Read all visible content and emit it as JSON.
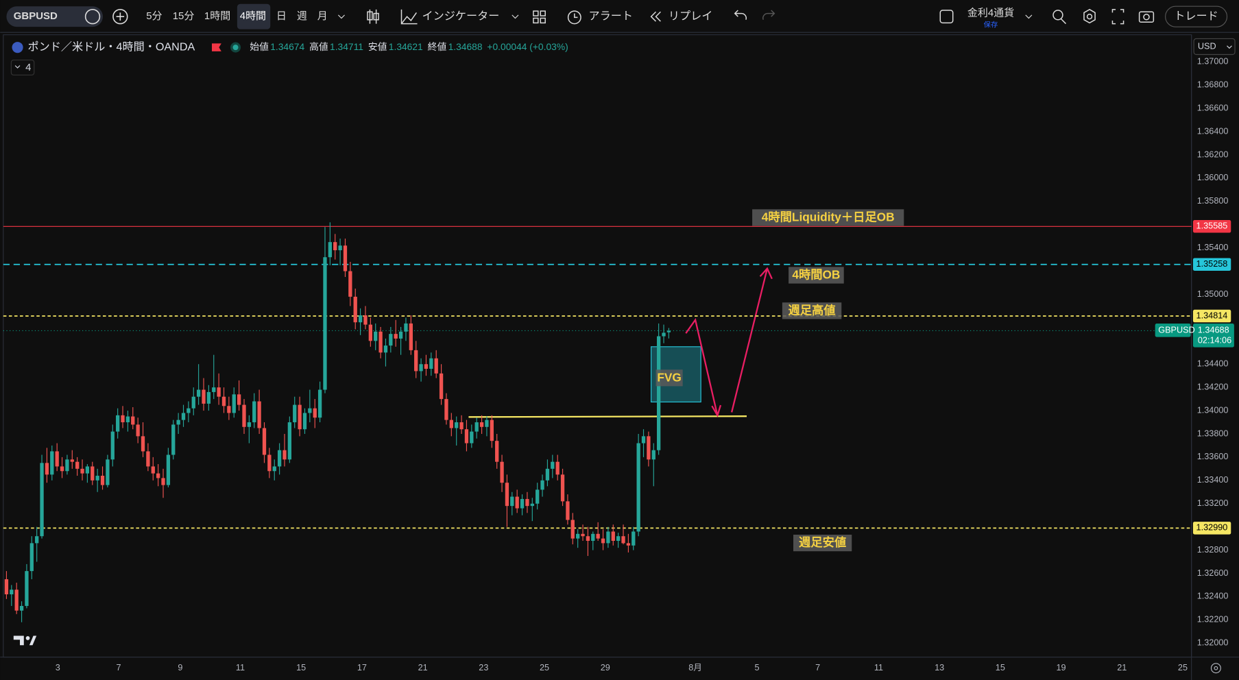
{
  "toolbar": {
    "symbol": "GBPUSD",
    "intervals": [
      "5分",
      "15分",
      "1時間",
      "4時間",
      "日",
      "週",
      "月"
    ],
    "active_interval": 3,
    "indicators": "インジケーター",
    "alert": "アラート",
    "replay": "リプレイ",
    "layout_name": "金利4通貨",
    "save": "保存",
    "trade": "トレード",
    "currency": "USD"
  },
  "legend": {
    "title": "ポンド／米ドル・4時間・OANDA",
    "items": [
      {
        "label": "始値",
        "value": "1.34674"
      },
      {
        "label": "高値",
        "value": "1.34711"
      },
      {
        "label": "安値",
        "value": "1.34621"
      },
      {
        "label": "終値",
        "value": "1.34688"
      }
    ],
    "change": "+0.00044 (+0.03%)",
    "collapse": "4"
  },
  "chart_data": {
    "type": "candlestick",
    "up_color": "#26a69a",
    "down_color": "#ef5350",
    "ylim": [
      1.3188,
      1.3722
    ],
    "yticks": [
      {
        "value": 1.37,
        "label": "1.37000"
      },
      {
        "value": 1.368,
        "label": "1.36800"
      },
      {
        "value": 1.366,
        "label": "1.36600"
      },
      {
        "value": 1.364,
        "label": "1.36400"
      },
      {
        "value": 1.362,
        "label": "1.36200"
      },
      {
        "value": 1.36,
        "label": "1.36000"
      },
      {
        "value": 1.358,
        "label": "1.35800"
      },
      {
        "value": 1.354,
        "label": "1.35400"
      },
      {
        "value": 1.35,
        "label": "1.35000"
      },
      {
        "value": 1.344,
        "label": "1.34400"
      },
      {
        "value": 1.342,
        "label": "1.34200"
      },
      {
        "value": 1.34,
        "label": "1.34000"
      },
      {
        "value": 1.338,
        "label": "1.33800"
      },
      {
        "value": 1.336,
        "label": "1.33600"
      },
      {
        "value": 1.334,
        "label": "1.33400"
      },
      {
        "value": 1.332,
        "label": "1.33200"
      },
      {
        "value": 1.328,
        "label": "1.32800"
      },
      {
        "value": 1.326,
        "label": "1.32600"
      },
      {
        "value": 1.324,
        "label": "1.32400"
      },
      {
        "value": 1.322,
        "label": "1.32200"
      },
      {
        "value": 1.32,
        "label": "1.32000"
      }
    ],
    "x_labels": [
      "3",
      "7",
      "9",
      "11",
      "15",
      "17",
      "21",
      "23",
      "25",
      "29",
      "8月",
      "5",
      "7",
      "11",
      "13",
      "15",
      "19",
      "21",
      "25"
    ],
    "candles": [
      [
        1.3255,
        1.3262,
        1.3238,
        1.3242
      ],
      [
        1.3242,
        1.325,
        1.3232,
        1.3246
      ],
      [
        1.3246,
        1.3252,
        1.3225,
        1.3228
      ],
      [
        1.3228,
        1.3236,
        1.3218,
        1.3232
      ],
      [
        1.3232,
        1.3268,
        1.323,
        1.3262
      ],
      [
        1.3262,
        1.3292,
        1.3255,
        1.3286
      ],
      [
        1.3286,
        1.33,
        1.327,
        1.3292
      ],
      [
        1.3292,
        1.3362,
        1.329,
        1.3355
      ],
      [
        1.3355,
        1.3368,
        1.3338,
        1.3345
      ],
      [
        1.3345,
        1.337,
        1.334,
        1.3365
      ],
      [
        1.3365,
        1.3372,
        1.3348,
        1.3352
      ],
      [
        1.3352,
        1.336,
        1.3342,
        1.3348
      ],
      [
        1.3348,
        1.3362,
        1.3345,
        1.3358
      ],
      [
        1.3358,
        1.3366,
        1.335,
        1.3356
      ],
      [
        1.3356,
        1.336,
        1.3344,
        1.335
      ],
      [
        1.335,
        1.3358,
        1.334,
        1.3346
      ],
      [
        1.3346,
        1.3354,
        1.3338,
        1.3352
      ],
      [
        1.3352,
        1.3356,
        1.3336,
        1.334
      ],
      [
        1.334,
        1.335,
        1.333,
        1.3344
      ],
      [
        1.3344,
        1.3352,
        1.3332,
        1.3336
      ],
      [
        1.3336,
        1.3362,
        1.3334,
        1.3358
      ],
      [
        1.3358,
        1.3388,
        1.3352,
        1.3382
      ],
      [
        1.3382,
        1.3402,
        1.3376,
        1.3396
      ],
      [
        1.3396,
        1.3404,
        1.3385,
        1.339
      ],
      [
        1.339,
        1.34,
        1.3382,
        1.3395
      ],
      [
        1.3395,
        1.3403,
        1.3384,
        1.3388
      ],
      [
        1.3388,
        1.3394,
        1.3372,
        1.3378
      ],
      [
        1.3378,
        1.339,
        1.336,
        1.3365
      ],
      [
        1.3365,
        1.3372,
        1.3348,
        1.3352
      ],
      [
        1.3352,
        1.336,
        1.334,
        1.3346
      ],
      [
        1.3346,
        1.3354,
        1.3335,
        1.3342
      ],
      [
        1.3342,
        1.335,
        1.3325,
        1.3336
      ],
      [
        1.3336,
        1.3368,
        1.3334,
        1.3362
      ],
      [
        1.3362,
        1.3392,
        1.3358,
        1.3388
      ],
      [
        1.3388,
        1.3398,
        1.338,
        1.3392
      ],
      [
        1.3392,
        1.3405,
        1.3386,
        1.3398
      ],
      [
        1.3398,
        1.3408,
        1.339,
        1.3402
      ],
      [
        1.3402,
        1.342,
        1.3396,
        1.3412
      ],
      [
        1.3412,
        1.344,
        1.3405,
        1.3418
      ],
      [
        1.3418,
        1.3428,
        1.34,
        1.3406
      ],
      [
        1.3406,
        1.3422,
        1.34,
        1.3416
      ],
      [
        1.3416,
        1.3448,
        1.341,
        1.342
      ],
      [
        1.342,
        1.3432,
        1.3405,
        1.3412
      ],
      [
        1.3412,
        1.342,
        1.3398,
        1.3404
      ],
      [
        1.3404,
        1.3412,
        1.3392,
        1.3398
      ],
      [
        1.3398,
        1.342,
        1.3394,
        1.3414
      ],
      [
        1.3414,
        1.3426,
        1.34,
        1.3405
      ],
      [
        1.3405,
        1.341,
        1.338,
        1.3386
      ],
      [
        1.3386,
        1.3396,
        1.3372,
        1.339
      ],
      [
        1.339,
        1.3415,
        1.3385,
        1.3408
      ],
      [
        1.3408,
        1.3418,
        1.338,
        1.3385
      ],
      [
        1.3385,
        1.339,
        1.3355,
        1.3362
      ],
      [
        1.3362,
        1.3368,
        1.3342,
        1.3348
      ],
      [
        1.3348,
        1.3358,
        1.334,
        1.3352
      ],
      [
        1.3352,
        1.3372,
        1.3345,
        1.3366
      ],
      [
        1.3366,
        1.338,
        1.3352,
        1.3358
      ],
      [
        1.3358,
        1.3395,
        1.3355,
        1.339
      ],
      [
        1.339,
        1.3412,
        1.3385,
        1.3405
      ],
      [
        1.3405,
        1.3412,
        1.3378,
        1.3384
      ],
      [
        1.3384,
        1.3402,
        1.338,
        1.3398
      ],
      [
        1.3398,
        1.3418,
        1.339,
        1.3402
      ],
      [
        1.3402,
        1.341,
        1.3385,
        1.3394
      ],
      [
        1.3394,
        1.3425,
        1.339,
        1.3418
      ],
      [
        1.3418,
        1.3558,
        1.3415,
        1.3532
      ],
      [
        1.3532,
        1.3562,
        1.3525,
        1.3545
      ],
      [
        1.3545,
        1.3552,
        1.353,
        1.3538
      ],
      [
        1.3538,
        1.3548,
        1.3525,
        1.3542
      ],
      [
        1.3542,
        1.3548,
        1.3515,
        1.352
      ],
      [
        1.352,
        1.3528,
        1.349,
        1.3498
      ],
      [
        1.3498,
        1.3505,
        1.347,
        1.3476
      ],
      [
        1.3476,
        1.3488,
        1.3465,
        1.3482
      ],
      [
        1.3482,
        1.349,
        1.347,
        1.3474
      ],
      [
        1.3474,
        1.348,
        1.3455,
        1.346
      ],
      [
        1.346,
        1.3475,
        1.3452,
        1.3468
      ],
      [
        1.3468,
        1.3472,
        1.3445,
        1.345
      ],
      [
        1.345,
        1.3462,
        1.3438,
        1.3456
      ],
      [
        1.3456,
        1.3472,
        1.345,
        1.3466
      ],
      [
        1.3466,
        1.3478,
        1.3455,
        1.3462
      ],
      [
        1.3462,
        1.3472,
        1.3448,
        1.3468
      ],
      [
        1.3468,
        1.348,
        1.346,
        1.3475
      ],
      [
        1.3475,
        1.3482,
        1.3448,
        1.3452
      ],
      [
        1.3452,
        1.346,
        1.3428,
        1.3434
      ],
      [
        1.3434,
        1.3445,
        1.3425,
        1.344
      ],
      [
        1.344,
        1.3448,
        1.343,
        1.3436
      ],
      [
        1.3436,
        1.345,
        1.343,
        1.3445
      ],
      [
        1.3445,
        1.3452,
        1.3428,
        1.3432
      ],
      [
        1.3432,
        1.344,
        1.3405,
        1.341
      ],
      [
        1.341,
        1.3415,
        1.3388,
        1.3392
      ],
      [
        1.3392,
        1.3398,
        1.3378,
        1.3385
      ],
      [
        1.3385,
        1.3395,
        1.337,
        1.339
      ],
      [
        1.339,
        1.3396,
        1.338,
        1.3384
      ],
      [
        1.3384,
        1.3392,
        1.3365,
        1.3372
      ],
      [
        1.3372,
        1.3388,
        1.3368,
        1.3382
      ],
      [
        1.3382,
        1.3394,
        1.3376,
        1.339
      ],
      [
        1.339,
        1.3396,
        1.338,
        1.3386
      ],
      [
        1.3386,
        1.3395,
        1.3378,
        1.3392
      ],
      [
        1.3392,
        1.3396,
        1.3368,
        1.3374
      ],
      [
        1.3374,
        1.338,
        1.335,
        1.3356
      ],
      [
        1.3356,
        1.3362,
        1.333,
        1.3338
      ],
      [
        1.3338,
        1.3345,
        1.33,
        1.3318
      ],
      [
        1.3318,
        1.333,
        1.331,
        1.3326
      ],
      [
        1.3326,
        1.3332,
        1.3312,
        1.3316
      ],
      [
        1.3316,
        1.3328,
        1.331,
        1.3324
      ],
      [
        1.3324,
        1.333,
        1.3312,
        1.3318
      ],
      [
        1.3318,
        1.3325,
        1.3305,
        1.332
      ],
      [
        1.332,
        1.3338,
        1.3315,
        1.3332
      ],
      [
        1.3332,
        1.3345,
        1.3326,
        1.334
      ],
      [
        1.334,
        1.3358,
        1.3335,
        1.335
      ],
      [
        1.335,
        1.3362,
        1.3342,
        1.3356
      ],
      [
        1.3356,
        1.3362,
        1.334,
        1.3345
      ],
      [
        1.3345,
        1.335,
        1.3318,
        1.3322
      ],
      [
        1.3322,
        1.3328,
        1.3302,
        1.3306
      ],
      [
        1.3306,
        1.3312,
        1.3285,
        1.329
      ],
      [
        1.329,
        1.3298,
        1.3282,
        1.3294
      ],
      [
        1.3294,
        1.3302,
        1.3288,
        1.3292
      ],
      [
        1.3292,
        1.33,
        1.3275,
        1.3288
      ],
      [
        1.3288,
        1.3296,
        1.328,
        1.3294
      ],
      [
        1.3294,
        1.3304,
        1.3288,
        1.329
      ],
      [
        1.329,
        1.3298,
        1.328,
        1.3286
      ],
      [
        1.3286,
        1.33,
        1.3282,
        1.3296
      ],
      [
        1.3296,
        1.3302,
        1.3284,
        1.3288
      ],
      [
        1.3288,
        1.3295,
        1.3282,
        1.3292
      ],
      [
        1.3292,
        1.3302,
        1.3285,
        1.3286
      ],
      [
        1.3286,
        1.3294,
        1.3278,
        1.3284
      ],
      [
        1.3284,
        1.33,
        1.328,
        1.3296
      ],
      [
        1.3296,
        1.338,
        1.3292,
        1.3372
      ],
      [
        1.3372,
        1.3384,
        1.336,
        1.3378
      ],
      [
        1.3378,
        1.3382,
        1.3352,
        1.3358
      ],
      [
        1.3358,
        1.3372,
        1.3335,
        1.3366
      ],
      [
        1.3366,
        1.3475,
        1.3362,
        1.3464
      ],
      [
        1.3464,
        1.3474,
        1.3458,
        1.3467
      ],
      [
        1.34674,
        1.34711,
        1.34621,
        1.34688
      ]
    ],
    "levels": [
      {
        "value": 1.35585,
        "label": "1.35585",
        "color": "#f23645",
        "style": "solid"
      },
      {
        "value": 1.35258,
        "label": "1.35258",
        "color": "#26c6da",
        "style": "dashed"
      },
      {
        "value": 1.34814,
        "label": "1.34814",
        "color": "#f5e663",
        "style": "dashed"
      },
      {
        "value": 1.3299,
        "label": "1.32990",
        "color": "#f5e663",
        "style": "dashed"
      }
    ],
    "last_price": {
      "value": 1.34688,
      "label": "1.34688",
      "symbol": "GBPUSD",
      "countdown": "02:14:06",
      "color": "#089981"
    },
    "annotations": [
      "4時間Liquidity＋日足OB",
      "4時間OB",
      "週足高値",
      "週足安値",
      "FVG"
    ]
  }
}
